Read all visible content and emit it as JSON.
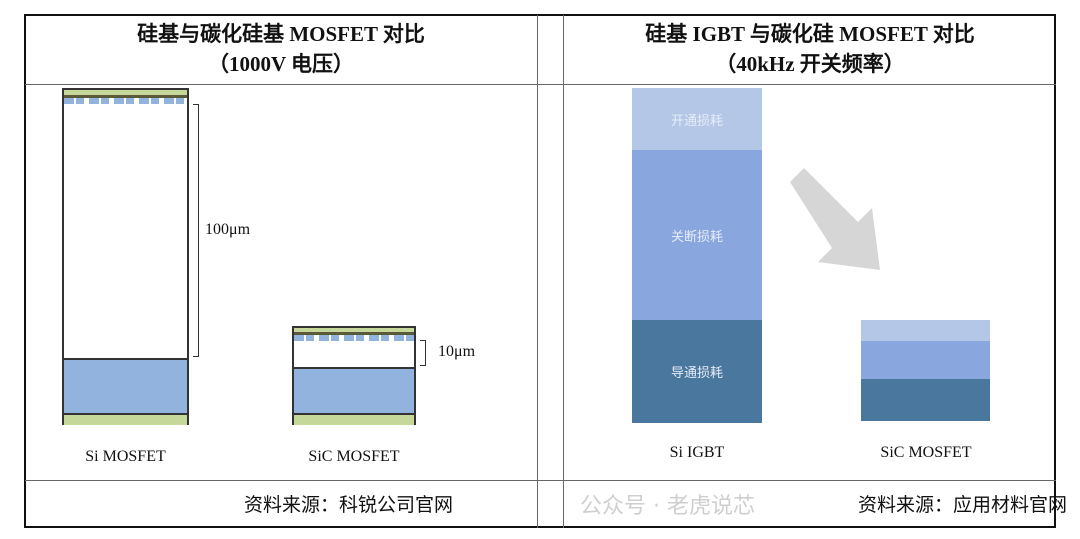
{
  "left": {
    "title": "硅基与碳化硅基 MOSFET 对比",
    "subtitle": "（1000V 电压）",
    "si_label": "Si MOSFET",
    "sic_label": "SiC MOSFET",
    "si_thickness": "100μm",
    "sic_thickness": "10μm",
    "source": "资料来源：科锐公司官网"
  },
  "right": {
    "title": "硅基 IGBT 与碳化硅 MOSFET 对比",
    "subtitle": "（40kHz 开关频率）",
    "si_label": "Si IGBT",
    "sic_label": "SiC MOSFET",
    "segments": [
      "开通损耗",
      "关断损耗",
      "导通损耗"
    ],
    "source": "资料来源：应用材料官网"
  },
  "watermark": "公众号 · 老虎说芯",
  "colors": {
    "green": "#c5d89a",
    "blue": "#92b3de",
    "light": "#b4c7e7",
    "mid": "#89a6df",
    "dark": "#4a779d",
    "arrow": "#d6d6d6"
  }
}
